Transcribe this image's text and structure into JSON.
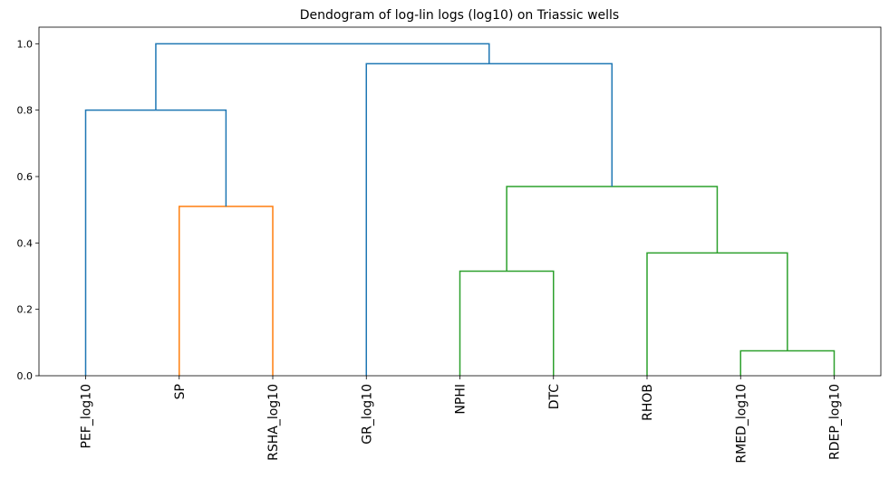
{
  "chart_data": {
    "type": "dendrogram",
    "title": "Dendogram of log-lin logs (log10) on Triassic wells",
    "xlabel": "",
    "ylabel": "",
    "ylim": [
      0,
      1.05
    ],
    "yticks": [
      0.0,
      0.2,
      0.4,
      0.6,
      0.8,
      1.0
    ],
    "ytick_labels": [
      "0.0",
      "0.2",
      "0.4",
      "0.6",
      "0.8",
      "1.0"
    ],
    "leaves": [
      "PEF_log10",
      "SP",
      "RSHA_log10",
      "GR_log10",
      "NPHI",
      "DTC",
      "RHOB",
      "RMED_log10",
      "RDEP_log10"
    ],
    "merges": [
      {
        "left": "RMED_log10",
        "right": "RDEP_log10",
        "height": 0.075,
        "color": "#2ca02c"
      },
      {
        "left": "NPHI",
        "right": "DTC",
        "height": 0.315,
        "color": "#2ca02c"
      },
      {
        "left": "RHOB",
        "right": "RMED_log10+RDEP_log10",
        "height": 0.37,
        "color": "#2ca02c"
      },
      {
        "left": "SP",
        "right": "RSHA_log10",
        "height": 0.51,
        "color": "#ff7f0e"
      },
      {
        "left": "NPHI+DTC",
        "right": "RHOB+RMED_log10+RDEP_log10",
        "height": 0.57,
        "color": "#2ca02c"
      },
      {
        "left": "PEF_log10",
        "right": "SP+RSHA_log10",
        "height": 0.8,
        "color": "#1f77b4"
      },
      {
        "left": "GR_log10",
        "right": "NPHI+DTC+RHOB+RMED_log10+RDEP_log10",
        "height": 0.94,
        "color": "#1f77b4"
      },
      {
        "left": "PEF_log10+SP+RSHA_log10",
        "right": "GR_log10+NPHI+DTC+RHOB+RMED_log10+RDEP_log10",
        "height": 1.0,
        "color": "#1f77b4"
      }
    ],
    "grid": false,
    "colors": {
      "blue": "#1f77b4",
      "orange": "#ff7f0e",
      "green": "#2ca02c"
    }
  }
}
